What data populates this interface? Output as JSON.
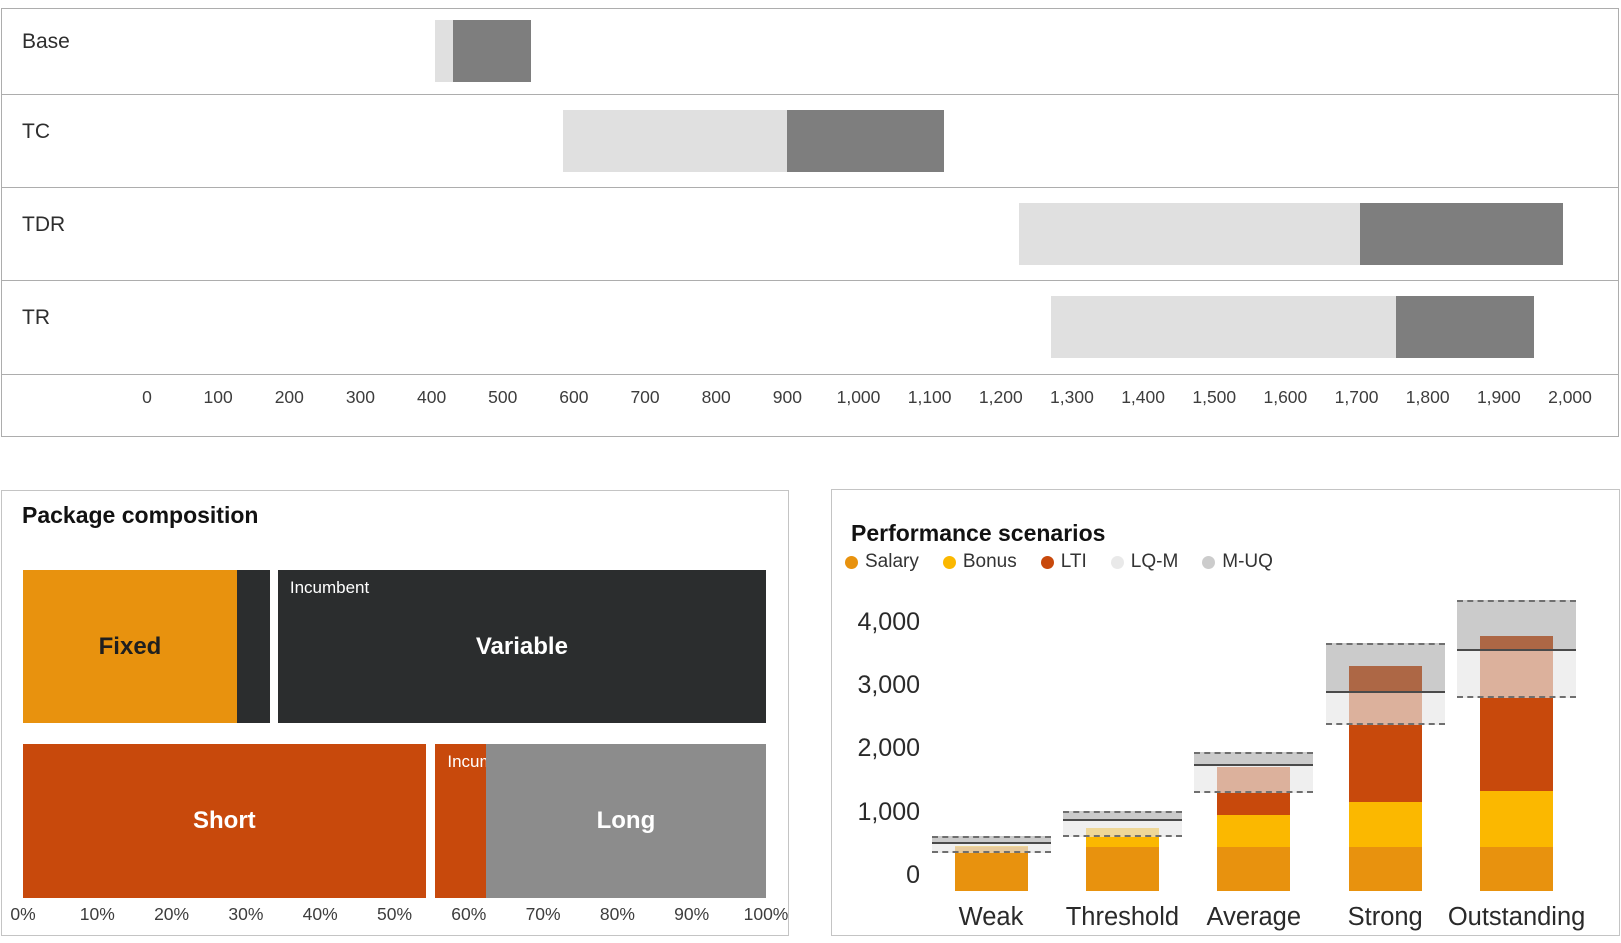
{
  "chart_data": [
    {
      "id": "market_ranges",
      "type": "bar",
      "orientation": "horizontal",
      "title": "",
      "categories": [
        "Base",
        "TC",
        "TDR",
        "TR"
      ],
      "series": [
        {
          "name": "LQ-M",
          "color": "#E0E0E0",
          "from": [
            405,
            585,
            1225,
            1270
          ],
          "to": [
            430,
            900,
            1705,
            1755
          ]
        },
        {
          "name": "M-UQ",
          "color": "#7E7E7E",
          "from": [
            430,
            900,
            1705,
            1755
          ],
          "to": [
            540,
            1120,
            1990,
            1950
          ]
        }
      ],
      "xlim": [
        0,
        2000
      ],
      "x_tick_step": 100,
      "x_tick_labels": [
        "0",
        "100",
        "200",
        "300",
        "400",
        "500",
        "600",
        "700",
        "800",
        "900",
        "1,000",
        "1,100",
        "1,200",
        "1,300",
        "1,400",
        "1,500",
        "1,600",
        "1,700",
        "1,800",
        "1,900",
        "2,000"
      ],
      "grid": false,
      "legend_position": "none"
    },
    {
      "id": "package_composition",
      "type": "mosaic",
      "title": "Package composition",
      "incumbent_label": "Incumbent",
      "rows": [
        {
          "blocks": [
            {
              "name": "fixed",
              "label": "Fixed",
              "label_color": "#1F1F1F",
              "start": 0,
              "end": 28.8,
              "color": "#E8920E"
            },
            {
              "name": "incumbent-marker",
              "label": "",
              "start": 28.8,
              "end": 33.3,
              "color": "#2B2D2E"
            },
            {
              "name": "variable",
              "label": "Variable",
              "label_color": "#FFFFFF",
              "corner_label": "Incumbent",
              "start": 34.3,
              "end": 100,
              "color": "#2B2D2E"
            }
          ]
        },
        {
          "blocks": [
            {
              "name": "short",
              "label": "Short",
              "label_color": "#FFFFFF",
              "start": 0,
              "end": 54.2,
              "color": "#C8490C"
            },
            {
              "name": "incumbent-marker",
              "label": "",
              "corner_label": "Incumbent",
              "start": 55.5,
              "end": 62.3,
              "color": "#C8490C"
            },
            {
              "name": "long",
              "label": "Long",
              "label_color": "#FFFFFF",
              "start": 62.3,
              "end": 100,
              "color": "#8C8C8C"
            }
          ]
        }
      ],
      "xlim": [
        0,
        100
      ],
      "x_tick_labels": [
        "0%",
        "10%",
        "20%",
        "30%",
        "40%",
        "50%",
        "60%",
        "70%",
        "80%",
        "90%",
        "100%"
      ]
    },
    {
      "id": "performance_scenarios",
      "type": "stacked-bar",
      "title": "Performance scenarios",
      "categories": [
        "Weak",
        "Threshold",
        "Average",
        "Strong",
        "Outstanding"
      ],
      "legend": [
        {
          "label": "Salary",
          "color": "#E8920E"
        },
        {
          "label": "Bonus",
          "color": "#FBB800"
        },
        {
          "label": "LTI",
          "color": "#C8490C"
        },
        {
          "label": "LQ-M",
          "color": "#E9E9E9"
        },
        {
          "label": "M-UQ",
          "color": "#CCCCCC"
        }
      ],
      "series": [
        {
          "name": "Salary",
          "color": "#E8920E",
          "values": [
            440,
            440,
            440,
            440,
            440
          ]
        },
        {
          "name": "Bonus",
          "color": "#FBB800",
          "values": [
            20,
            310,
            510,
            720,
            885
          ]
        },
        {
          "name": "LTI",
          "color": "#C8490C",
          "values": [
            0,
            0,
            760,
            2140,
            2455
          ]
        }
      ],
      "bands": [
        {
          "lq": 345,
          "median": 500,
          "uq": 615
        },
        {
          "lq": 605,
          "median": 870,
          "uq": 1015
        },
        {
          "lq": 1290,
          "median": 1740,
          "uq": 1950
        },
        {
          "lq": 2375,
          "median": 2885,
          "uq": 3660
        },
        {
          "lq": 2790,
          "median": 3555,
          "uq": 4345
        }
      ],
      "band_fills": {
        "lq_m_fill": "rgba(231,231,231,0.66)",
        "m_uq_fill": "rgba(140,140,140,0.45)",
        "dash_color": "#6F6F6F",
        "median_color": "#4A4A4A"
      },
      "ylim": [
        0,
        4000
      ],
      "y_tick_step": 1000,
      "y_tick_labels": [
        "0",
        "1,000",
        "2,000",
        "3,000",
        "4,000"
      ],
      "grid": false,
      "legend_position": "top-left"
    }
  ]
}
